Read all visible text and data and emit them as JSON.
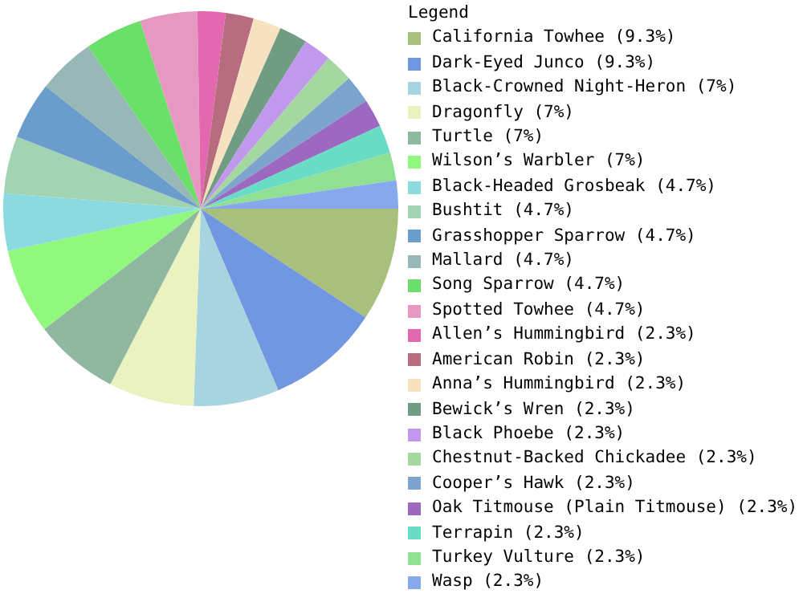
{
  "chart_data": {
    "type": "pie",
    "legend_title": "Legend",
    "legend": "right",
    "categories": [
      "California Towhee (9.3%)",
      "Dark-Eyed Junco (9.3%)",
      "Black-Crowned Night-Heron (7%)",
      "Dragonfly (7%)",
      "Turtle (7%)",
      "Wilson’s Warbler (7%)",
      "Black-Headed Grosbeak (4.7%)",
      "Bushtit (4.7%)",
      "Grasshopper Sparrow (4.7%)",
      "Mallard (4.7%)",
      "Song Sparrow (4.7%)",
      "Spotted Towhee (4.7%)",
      "Allen’s Hummingbird (2.3%)",
      "American Robin (2.3%)",
      "Anna’s Hummingbird (2.3%)",
      "Bewick’s Wren (2.3%)",
      "Black Phoebe (2.3%)",
      "Chestnut-Backed Chickadee (2.3%)",
      "Cooper’s Hawk (2.3%)",
      "Oak Titmouse (Plain Titmouse) (2.3%)",
      "Terrapin (2.3%)",
      "Turkey Vulture (2.3%)",
      "Wasp (2.3%)"
    ],
    "values": [
      9.3,
      9.3,
      7,
      7,
      7,
      7,
      4.7,
      4.7,
      4.7,
      4.7,
      4.7,
      4.7,
      2.3,
      2.3,
      2.3,
      2.3,
      2.3,
      2.3,
      2.3,
      2.3,
      2.3,
      2.3,
      2.3
    ],
    "colors": [
      "#a8c07c",
      "#7097e0",
      "#a8d4e0",
      "#eaf2c0",
      "#90b8a0",
      "#90f87c",
      "#8adae0",
      "#a2d4b4",
      "#6a9ccc",
      "#98b8b8",
      "#6ae06a",
      "#e698c0",
      "#e468b0",
      "#b86c80",
      "#f6e2c0",
      "#709c84",
      "#c098ec",
      "#a4d8a0",
      "#7ca4cc",
      "#9c68c0",
      "#68dcc4",
      "#90e094",
      "#88a8ec"
    ]
  }
}
